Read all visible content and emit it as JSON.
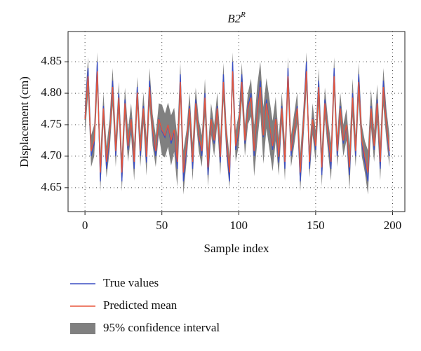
{
  "chart_data": {
    "type": "line",
    "title": "B2",
    "title_superscript": "R",
    "x_label": "Sample index",
    "y_label": "Displacement (cm)",
    "xlim": [
      -11,
      208
    ],
    "ylim": [
      4.612,
      4.898
    ],
    "xticks": [
      0,
      50,
      100,
      150,
      200
    ],
    "yticks": [
      4.65,
      {
        "value": 4.7,
        "label": "4.70"
      },
      4.75,
      {
        "value": 4.8,
        "label": "4.80"
      },
      4.85
    ],
    "grid": true,
    "legend": "bottom",
    "x": [
      0,
      2,
      4,
      6,
      8,
      10,
      12,
      14,
      16,
      18,
      20,
      22,
      24,
      26,
      28,
      30,
      32,
      34,
      36,
      38,
      40,
      42,
      44,
      46,
      48,
      50,
      52,
      54,
      56,
      58,
      60,
      62,
      64,
      66,
      68,
      70,
      72,
      74,
      76,
      78,
      80,
      82,
      84,
      86,
      88,
      90,
      92,
      94,
      96,
      98,
      100,
      102,
      104,
      106,
      108,
      110,
      112,
      114,
      116,
      118,
      120,
      122,
      124,
      126,
      128,
      130,
      132,
      134,
      136,
      138,
      140,
      142,
      144,
      146,
      148,
      150,
      152,
      154,
      156,
      158,
      160,
      162,
      164,
      166,
      168,
      170,
      172,
      174,
      176,
      178,
      180,
      182,
      184,
      186,
      188,
      190,
      192,
      194,
      196,
      198
    ],
    "series": [
      {
        "name": "True values",
        "color": "#3b4fc4",
        "values": [
          4.76,
          4.84,
          4.7,
          4.72,
          4.85,
          4.66,
          4.78,
          4.68,
          4.73,
          4.82,
          4.7,
          4.8,
          4.66,
          4.79,
          4.71,
          4.76,
          4.68,
          4.81,
          4.7,
          4.78,
          4.69,
          4.82,
          4.74,
          4.7,
          4.76,
          4.74,
          4.73,
          4.75,
          4.72,
          4.74,
          4.68,
          4.83,
          4.66,
          4.71,
          4.78,
          4.68,
          4.79,
          4.73,
          4.7,
          4.8,
          4.67,
          4.76,
          4.72,
          4.78,
          4.69,
          4.83,
          4.72,
          4.66,
          4.85,
          4.71,
          4.74,
          4.83,
          4.72,
          4.78,
          4.8,
          4.7,
          4.77,
          4.82,
          4.73,
          4.79,
          4.75,
          4.71,
          4.76,
          4.69,
          4.78,
          4.68,
          4.84,
          4.7,
          4.74,
          4.78,
          4.66,
          4.75,
          4.85,
          4.68,
          4.76,
          4.71,
          4.82,
          4.67,
          4.79,
          4.73,
          4.68,
          4.84,
          4.7,
          4.78,
          4.72,
          4.75,
          4.67,
          4.8,
          4.7,
          4.83,
          4.72,
          4.69,
          4.66,
          4.78,
          4.71,
          4.79,
          4.68,
          4.82,
          4.75,
          4.7
        ]
      },
      {
        "name": "Predicted mean",
        "color": "#e8553a",
        "values": [
          4.759,
          4.827,
          4.708,
          4.725,
          4.835,
          4.674,
          4.776,
          4.691,
          4.733,
          4.81,
          4.708,
          4.793,
          4.674,
          4.784,
          4.716,
          4.759,
          4.691,
          4.801,
          4.708,
          4.776,
          4.699,
          4.81,
          4.742,
          4.708,
          4.759,
          4.742,
          4.733,
          4.75,
          4.725,
          4.742,
          4.691,
          4.818,
          4.674,
          4.716,
          4.776,
          4.691,
          4.784,
          4.733,
          4.708,
          4.793,
          4.682,
          4.759,
          4.725,
          4.776,
          4.699,
          4.818,
          4.725,
          4.674,
          4.835,
          4.716,
          4.742,
          4.818,
          4.725,
          4.776,
          4.793,
          4.708,
          4.767,
          4.81,
          4.733,
          4.784,
          4.75,
          4.716,
          4.759,
          4.699,
          4.776,
          4.691,
          4.827,
          4.708,
          4.742,
          4.776,
          4.674,
          4.75,
          4.835,
          4.691,
          4.759,
          4.716,
          4.81,
          4.682,
          4.784,
          4.733,
          4.691,
          4.827,
          4.708,
          4.776,
          4.725,
          4.75,
          4.682,
          4.793,
          4.708,
          4.818,
          4.725,
          4.699,
          4.674,
          4.776,
          4.716,
          4.784,
          4.691,
          4.81,
          4.75,
          4.708
        ]
      },
      {
        "name": "95% confidence interval",
        "color": "#808080",
        "values": [
          0.025,
          0.03,
          0.025,
          0.025,
          0.03,
          0.03,
          0.025,
          0.025,
          0.025,
          0.03,
          0.025,
          0.025,
          0.03,
          0.025,
          0.025,
          0.025,
          0.03,
          0.025,
          0.025,
          0.025,
          0.03,
          0.03,
          0.025,
          0.025,
          0.025,
          0.04,
          0.035,
          0.035,
          0.04,
          0.035,
          0.04,
          0.03,
          0.035,
          0.025,
          0.025,
          0.03,
          0.025,
          0.025,
          0.025,
          0.03,
          0.03,
          0.025,
          0.025,
          0.025,
          0.03,
          0.03,
          0.025,
          0.025,
          0.03,
          0.025,
          0.025,
          0.03,
          0.025,
          0.025,
          0.03,
          0.04,
          0.045,
          0.04,
          0.045,
          0.04,
          0.04,
          0.04,
          0.035,
          0.03,
          0.025,
          0.03,
          0.03,
          0.025,
          0.025,
          0.025,
          0.03,
          0.025,
          0.03,
          0.025,
          0.025,
          0.025,
          0.03,
          0.03,
          0.025,
          0.025,
          0.03,
          0.03,
          0.025,
          0.025,
          0.025,
          0.025,
          0.035,
          0.03,
          0.025,
          0.03,
          0.025,
          0.025,
          0.035,
          0.03,
          0.025,
          0.03,
          0.03,
          0.03,
          0.025,
          0.025
        ]
      }
    ]
  }
}
